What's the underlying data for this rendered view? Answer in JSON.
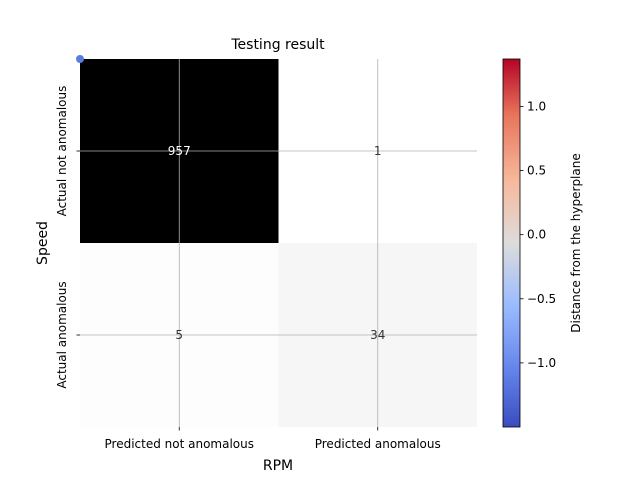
{
  "chart_data": {
    "type": "heatmap",
    "title": "Testing result",
    "xlabel": "RPM",
    "ylabel": "Speed",
    "x_categories": [
      "Predicted not anomalous",
      "Predicted anomalous"
    ],
    "y_categories": [
      "Actual not anomalous",
      "Actual anomalous"
    ],
    "matrix": [
      [
        957,
        1
      ],
      [
        5,
        34
      ]
    ],
    "cell_colors": [
      [
        "#000000",
        "#ffffff"
      ],
      [
        "#fdfdfd",
        "#f6f6f6"
      ]
    ],
    "cell_text_colors": [
      [
        "#ffffff",
        "#333333"
      ],
      [
        "#333333",
        "#333333"
      ]
    ],
    "grid": true,
    "colorbar": {
      "label": "Distance from the hyperplane",
      "colormap": "coolwarm",
      "range": [
        -1.5,
        1.37
      ],
      "ticks": [
        -1.0,
        -0.5,
        0.0,
        0.5,
        1.0
      ],
      "tick_labels": [
        "−1.0",
        "−0.5",
        "0.0",
        "0.5",
        "1.0"
      ]
    },
    "points": [
      {
        "x": 0,
        "y": 0,
        "value": -1.3,
        "color": "#5b7de0"
      }
    ]
  }
}
